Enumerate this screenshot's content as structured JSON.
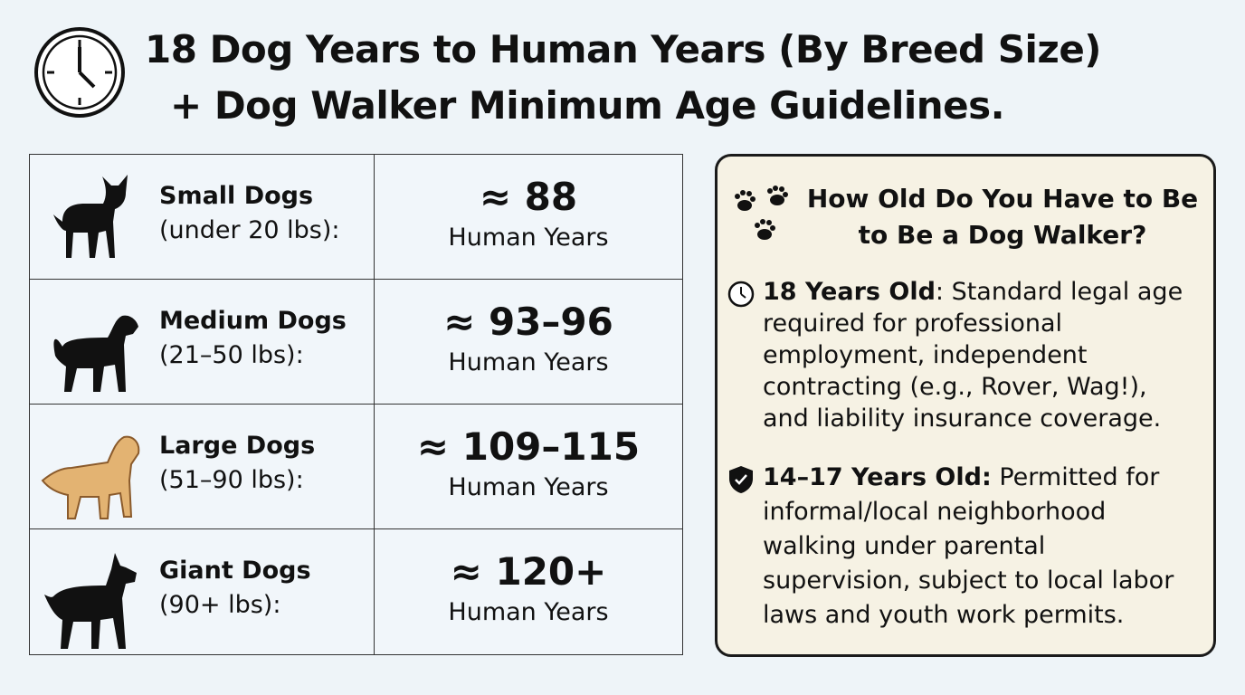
{
  "header": {
    "title_line1": "18 Dog Years to Human Years (By Breed Size)",
    "title_line2": "+ Dog Walker Minimum Age Guidelines."
  },
  "table": {
    "rows": [
      {
        "breed": "Small Dogs",
        "weight": "(under 20 lbs):",
        "estimate": "≈ 88",
        "unit": "Human Years"
      },
      {
        "breed": "Medium Dogs",
        "weight": "(21–50 lbs):",
        "estimate": "≈ 93–96",
        "unit": "Human Years"
      },
      {
        "breed": "Large Dogs",
        "weight": "(51–90 lbs):",
        "estimate": "≈ 109–115",
        "unit": "Human Years"
      },
      {
        "breed": "Giant Dogs",
        "weight": "(90+ lbs):",
        "estimate": "≈ 120+",
        "unit": "Human Years"
      }
    ]
  },
  "panel": {
    "title_line1": "How Old Do You Have to Be",
    "title_line2": "to Be a Dog Walker?",
    "items": [
      {
        "label": "18 Years Old",
        "text": ": Standard legal age required for professional employment, independent contracting (e.g., Rover, Wag!), and liability insurance coverage."
      },
      {
        "label": "14–17 Years Old:",
        "text": " Permitted for informal/local neighborhood walking under parental supervision, subject to local labor laws and youth work permits."
      }
    ]
  }
}
